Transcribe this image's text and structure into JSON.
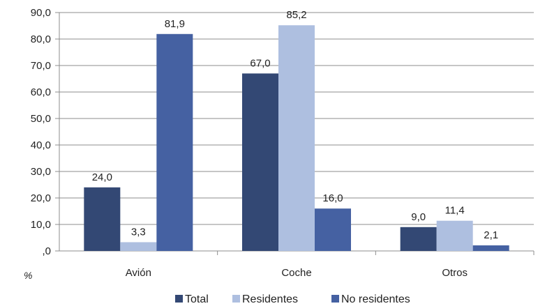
{
  "chart_data": {
    "type": "bar",
    "categories": [
      "Avión",
      "Coche",
      "Otros"
    ],
    "series": [
      {
        "name": "Total",
        "values": [
          24.0,
          67.0,
          9.0
        ],
        "labels": [
          "24,0",
          "67,0",
          "9,0"
        ],
        "color": "#334874"
      },
      {
        "name": "Residentes",
        "values": [
          3.3,
          85.2,
          11.4
        ],
        "labels": [
          "3,3",
          "85,2",
          "11,4"
        ],
        "color": "#aebfe0"
      },
      {
        "name": "No residentes",
        "values": [
          81.9,
          16.0,
          2.1
        ],
        "labels": [
          "81,9",
          "16,0",
          "2,1"
        ],
        "color": "#4561a2"
      }
    ],
    "yticks": [
      {
        "value": 0,
        "label": ",0"
      },
      {
        "value": 10,
        "label": "10,0"
      },
      {
        "value": 20,
        "label": "20,0"
      },
      {
        "value": 30,
        "label": "30,0"
      },
      {
        "value": 40,
        "label": "40,0"
      },
      {
        "value": 50,
        "label": "50,0"
      },
      {
        "value": 60,
        "label": "60,0"
      },
      {
        "value": 70,
        "label": "70,0"
      },
      {
        "value": 80,
        "label": "80,0"
      },
      {
        "value": 90,
        "label": "90,0"
      }
    ],
    "ylim": [
      0,
      90
    ],
    "ylabel": "%",
    "grid": true,
    "legend": "bottom"
  }
}
